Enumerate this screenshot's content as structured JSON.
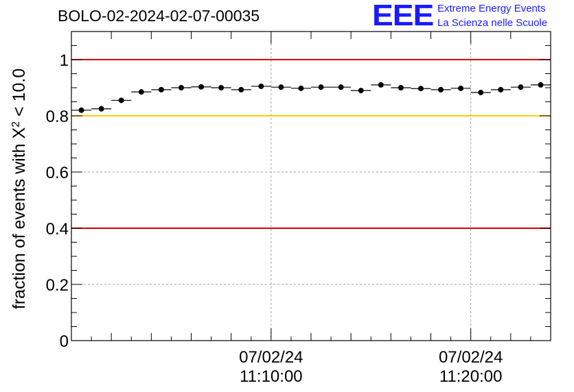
{
  "header": {
    "title": "BOLO-02-2024-02-07-00035"
  },
  "logo": {
    "mark": "EEE",
    "line1": "Extreme Energy Events",
    "line2": "La Scienza nelle Scuole",
    "color": "#1a1aff"
  },
  "chart_data": {
    "type": "scatter",
    "title": "BOLO-02-2024-02-07-00035",
    "ylabel": "fraction of events with X",
    "ylabel_sup": "2",
    "ylabel_tail": " < 10.0",
    "xlabel": "",
    "x_unit": "minutes after 11:00:00 on 07/02/24",
    "xlim": [
      0,
      24
    ],
    "ylim": [
      0,
      1.1
    ],
    "yticks": [
      0,
      0.2,
      0.4,
      0.6,
      0.8,
      1
    ],
    "ytick_labels": [
      "0",
      "0.2",
      "0.4",
      "0.6",
      "0.8",
      "1"
    ],
    "xticks": [
      {
        "x": 10,
        "date": "07/02/24",
        "time": "11:10:00"
      },
      {
        "x": 20,
        "date": "07/02/24",
        "time": "11:20:00"
      }
    ],
    "grid": true,
    "reference_lines": [
      {
        "y": 1.0,
        "color": "#e00000"
      },
      {
        "y": 0.8,
        "color": "#ffcc00"
      },
      {
        "y": 0.4,
        "color": "#e00000"
      }
    ],
    "bin_width": 1,
    "series": [
      {
        "x": [
          0.5,
          1.5,
          2.5,
          3.5,
          4.5,
          5.5,
          6.5,
          7.5,
          8.5,
          9.5,
          10.5,
          11.5,
          12.5,
          13.5,
          14.5,
          15.5,
          16.5,
          17.5,
          18.5,
          19.5,
          20.5,
          21.5,
          22.5,
          23.5
        ],
        "y": [
          0.82,
          0.825,
          0.855,
          0.885,
          0.893,
          0.9,
          0.903,
          0.9,
          0.893,
          0.905,
          0.902,
          0.898,
          0.902,
          0.902,
          0.89,
          0.91,
          0.9,
          0.897,
          0.893,
          0.898,
          0.883,
          0.893,
          0.902,
          0.91
        ],
        "color": "#000000"
      }
    ]
  }
}
